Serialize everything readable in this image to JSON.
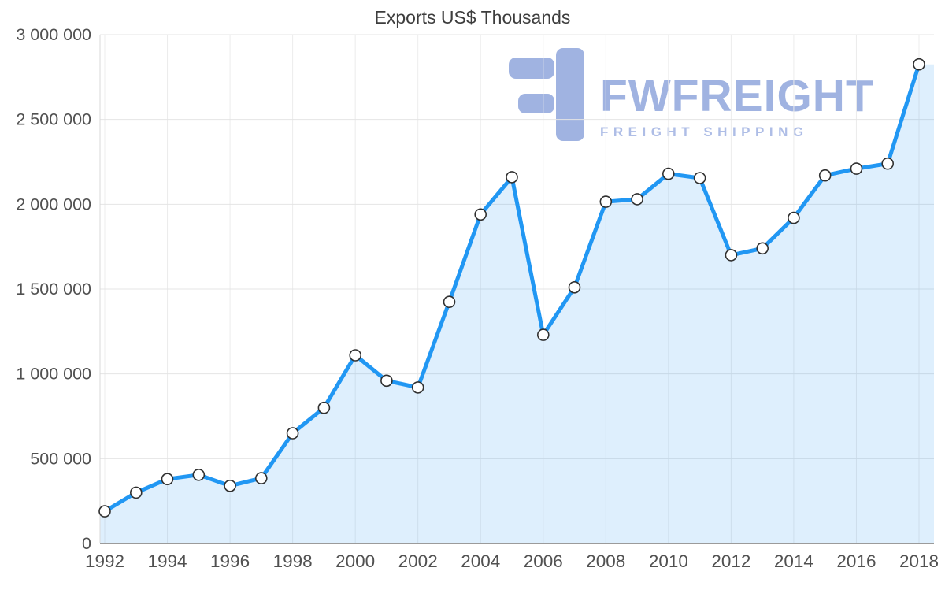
{
  "watermark": {
    "brand": "FWFREIGHT",
    "tagline": "FREIGHT SHIPPING",
    "brand_color": "rgba(102,133,206,0.62)",
    "tagline_color": "rgba(160,178,226,0.85)",
    "logo_color": "rgba(102,133,206,0.62)",
    "icon": "fwfreight-f-logo"
  },
  "chart_data": {
    "type": "line",
    "title": "Exports US$ Thousands",
    "series_name": "Exports US$ Thousands",
    "x": [
      1992,
      1993,
      1994,
      1995,
      1996,
      1997,
      1998,
      1999,
      2000,
      2001,
      2002,
      2003,
      2004,
      2005,
      2006,
      2007,
      2008,
      2009,
      2010,
      2011,
      2012,
      2013,
      2014,
      2015,
      2016,
      2017,
      2018
    ],
    "values": [
      190000,
      300000,
      380000,
      405000,
      340000,
      385000,
      650000,
      800000,
      1110000,
      960000,
      920000,
      1425000,
      1940000,
      2160000,
      1230000,
      1510000,
      2015000,
      2030000,
      2180000,
      2155000,
      1700000,
      1740000,
      1920000,
      2170000,
      2210000,
      2240000,
      2825000
    ],
    "ylim": [
      0,
      3000000
    ],
    "ytick_values": [
      0,
      500000,
      1000000,
      1500000,
      2000000,
      2500000,
      3000000
    ],
    "ytick_labels": [
      "0",
      "500 000",
      "1 000 000",
      "1 500 000",
      "2 000 000",
      "2 500 000",
      "3 000 000"
    ],
    "xtick_step": 2,
    "xtick_labels": [
      "1992",
      "1994",
      "1996",
      "1998",
      "2000",
      "2002",
      "2004",
      "2006",
      "2008",
      "2010",
      "2012",
      "2014",
      "2016",
      "2018"
    ],
    "grid": true,
    "legend": "none",
    "marker": "circle",
    "area_fill": true,
    "colors": {
      "line": "#2197f3",
      "fill": "rgba(33,150,243,0.15)",
      "marker_fill": "#ffffff",
      "marker_stroke": "#303030",
      "grid": "#e4e4e4",
      "grid_vertical": "#ececec",
      "axis_bottom": "#9b9b9b",
      "axis_left": "#d9d9d9",
      "tick_text": "#515151",
      "title_text": "#3d3d3d"
    }
  }
}
